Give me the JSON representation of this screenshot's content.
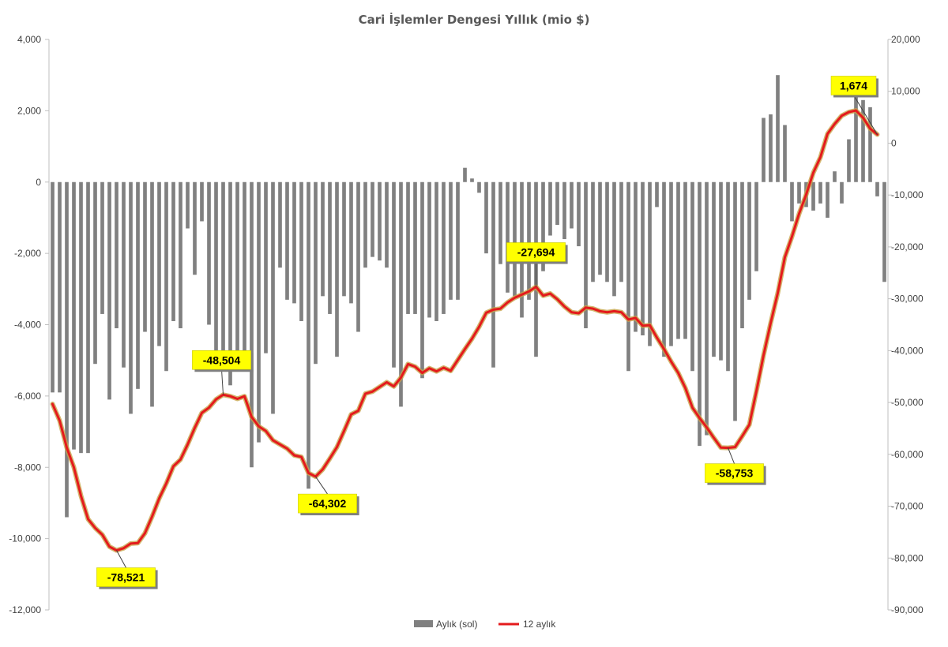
{
  "chart_data": {
    "type": "bar",
    "title": "Cari İşlemler Dengesi Yıllık (mio $)",
    "y_left": {
      "ylim": [
        -12000,
        4000
      ],
      "ticks": [
        -12000,
        -10000,
        -8000,
        -6000,
        -4000,
        -2000,
        0,
        2000,
        4000
      ],
      "tick_labels": [
        "-12,000",
        "-10,000",
        "-8,000",
        "-6,000",
        "-4,000",
        "-2,000",
        "0",
        "2,000",
        "4,000"
      ]
    },
    "y_right": {
      "ylim": [
        -90000,
        20000
      ],
      "ticks": [
        -90000,
        -80000,
        -70000,
        -60000,
        -50000,
        -40000,
        -30000,
        -20000,
        -10000,
        0,
        10000,
        20000
      ],
      "tick_labels": [
        "-90,000",
        "-80,000",
        "-70,000",
        "-60,000",
        "-50,000",
        "-40,000",
        "-30,000",
        "-20,000",
        "-10,000",
        "0",
        "10,000",
        "20,000"
      ]
    },
    "grid": false,
    "legend_position": "bottom",
    "series": [
      {
        "name": "Aylık (sol)",
        "type": "bar",
        "axis": "left",
        "color": "#808080",
        "values": [
          -5900,
          -5900,
          -9400,
          -7500,
          -7600,
          -7600,
          -5100,
          -3700,
          -6100,
          -4100,
          -5200,
          -6500,
          -5800,
          -4200,
          -6300,
          -4600,
          -5300,
          -3900,
          -4100,
          -1300,
          -2600,
          -1100,
          -4000,
          -5000,
          -5200,
          -5700,
          -5100,
          -5200,
          -8000,
          -7300,
          -4800,
          -6500,
          -2400,
          -3300,
          -3400,
          -3900,
          -8600,
          -5100,
          -3200,
          -3700,
          -4900,
          -3200,
          -3400,
          -4200,
          -2400,
          -2100,
          -2200,
          -2400,
          -5200,
          -6300,
          -3700,
          -3700,
          -5500,
          -3800,
          -3900,
          -3700,
          -3300,
          -3300,
          400,
          100,
          -300,
          -2000,
          -5200,
          -2300,
          -3100,
          -3200,
          -3800,
          -3300,
          -4900,
          -2500,
          -1500,
          -1200,
          -1600,
          -1300,
          -1800,
          -4100,
          -2800,
          -2600,
          -2800,
          -3200,
          -2800,
          -5300,
          -4200,
          -4300,
          -4600,
          -700,
          -4900,
          -4600,
          -4400,
          -4400,
          -5300,
          -7400,
          -7100,
          -4900,
          -5000,
          -5300,
          -6700,
          -4100,
          -3300,
          -2500,
          1800,
          1900,
          3000,
          1600,
          -1100,
          -600,
          -700,
          -800,
          -600,
          -1000,
          300,
          -600,
          1200,
          2500,
          2300,
          2100,
          -400,
          -2800
        ]
      },
      {
        "name": "12 aylık",
        "type": "line",
        "axis": "right",
        "color": "#e41a1c",
        "values": [
          -50300,
          -53500,
          -58700,
          -62500,
          -68000,
          -72500,
          -74200,
          -75500,
          -77800,
          -78521,
          -78100,
          -77200,
          -77100,
          -75200,
          -72000,
          -68500,
          -65600,
          -62300,
          -61000,
          -58100,
          -54900,
          -52000,
          -51000,
          -49400,
          -48504,
          -48800,
          -49300,
          -48800,
          -52800,
          -54600,
          -55500,
          -57300,
          -58100,
          -58900,
          -60200,
          -60500,
          -63600,
          -64302,
          -62900,
          -60800,
          -58600,
          -55500,
          -52300,
          -51600,
          -48300,
          -47900,
          -47000,
          -46100,
          -46900,
          -45200,
          -42600,
          -43100,
          -44300,
          -43400,
          -44000,
          -43300,
          -43900,
          -41800,
          -39700,
          -37700,
          -35400,
          -32700,
          -32100,
          -31900,
          -30700,
          -29800,
          -29200,
          -28600,
          -27694,
          -29400,
          -29000,
          -30100,
          -31500,
          -32600,
          -32800,
          -31700,
          -31900,
          -32400,
          -32600,
          -32400,
          -32600,
          -34000,
          -33700,
          -35200,
          -35100,
          -37500,
          -39700,
          -42100,
          -44300,
          -47200,
          -51000,
          -53000,
          -54800,
          -56800,
          -58700,
          -58753,
          -58600,
          -56500,
          -54300,
          -47800,
          -40900,
          -34700,
          -28900,
          -22000,
          -18000,
          -13600,
          -9900,
          -5700,
          -2700,
          1800,
          3700,
          5300,
          6000,
          6300,
          4900,
          2800,
          1674
        ]
      }
    ],
    "annotations": [
      {
        "label": "-78,521",
        "value": -78521,
        "index": 9
      },
      {
        "label": "-48,504",
        "value": -48504,
        "index": 24
      },
      {
        "label": "-64,302",
        "value": -64302,
        "index": 37
      },
      {
        "label": "-27,694",
        "value": -27694,
        "index": 68
      },
      {
        "label": "-58,753",
        "value": -58753,
        "index": 95
      },
      {
        "label": "1,674",
        "value": 1674,
        "index": 116
      }
    ]
  }
}
